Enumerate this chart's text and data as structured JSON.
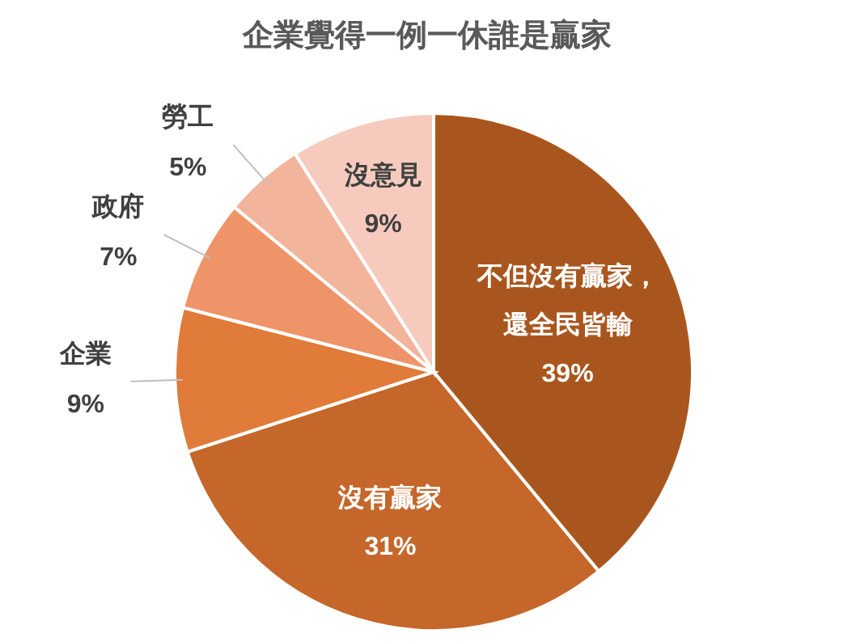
{
  "chart_data": {
    "type": "pie",
    "title": "企業覺得一例一休誰是贏家",
    "categories": [
      "不但沒有贏家，還全民皆輸",
      "沒有贏家",
      "企業",
      "政府",
      "勞工",
      "沒意見"
    ],
    "values": [
      39,
      31,
      9,
      7,
      5,
      9
    ],
    "value_labels": [
      "39%",
      "31%",
      "9%",
      "7%",
      "5%",
      "9%"
    ],
    "colors": [
      "#a9561e",
      "#c5672a",
      "#e07b39",
      "#ef9468",
      "#f2b49a",
      "#f6cbbe"
    ]
  }
}
